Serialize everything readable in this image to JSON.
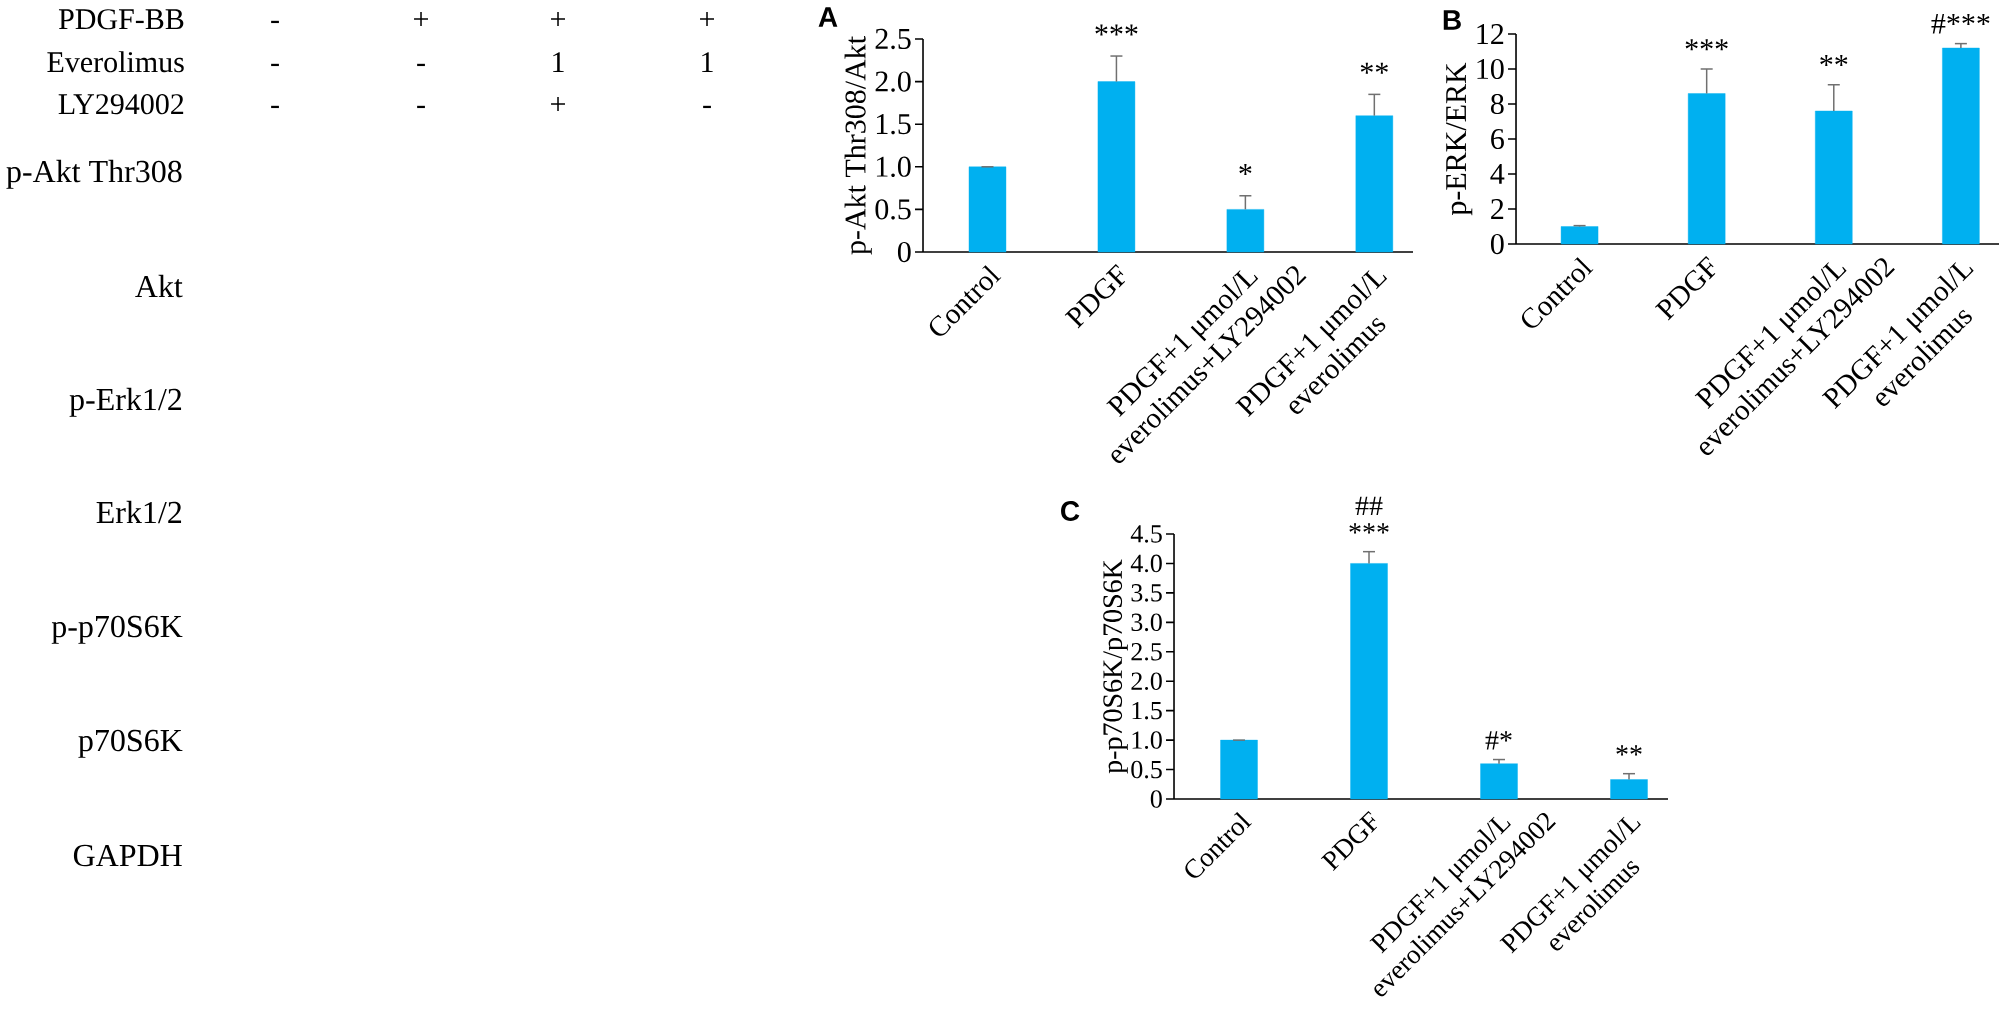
{
  "chart_data": [
    {
      "type": "other",
      "annotations": [
        "PDGF-BB",
        "-",
        "+",
        "+",
        "+",
        "Everolimus",
        "-",
        "-",
        "1",
        "1",
        "LY294002",
        "-",
        "-",
        "+",
        "-",
        "p-Akt Thr308",
        "Akt",
        "p-Erk1/2",
        "Erk1/2",
        "p-p70S6K",
        "p70S6K",
        "GAPDH"
      ]
    },
    {
      "type": "bar",
      "title": "A",
      "ylabel": "p-Akt Thr308/Akt",
      "categories": [
        "Control",
        "PDGF",
        "PDGF+1 μmol/L everolimus+LY294002",
        "PDGF+1 μmol/L everolimus"
      ],
      "values": [
        1,
        2.0,
        0.5,
        1.6
      ],
      "errors": [
        [
          1,
          1
        ],
        [
          2.0,
          2.3
        ],
        [
          0.5,
          0.66
        ],
        [
          1.6,
          1.85
        ]
      ],
      "color": "#00b0f0",
      "ylim": [
        0,
        2.5
      ],
      "yticks": [
        0,
        0.5,
        {
          "value": 1,
          "label": "1.0"
        },
        1.5,
        {
          "value": 2,
          "label": "2.0"
        },
        2.5
      ],
      "annotations": [
        "***",
        "*",
        "**"
      ]
    },
    {
      "type": "bar",
      "title": "B",
      "ylabel": "p-ERK/ERK",
      "categories": [
        "Control",
        "PDGF",
        "PDGF+1 μmol/L everolimus+LY294002",
        "PDGF+1 μmol/L everolimus"
      ],
      "values": [
        1,
        8.6,
        7.6,
        11.2
      ],
      "errors": [
        [
          1,
          1.05
        ],
        [
          8.6,
          10.0
        ],
        [
          7.6,
          9.1
        ],
        [
          11.2,
          11.45
        ]
      ],
      "color": "#00b0f0",
      "ylim": [
        0,
        12
      ],
      "yticks": [
        0,
        2,
        4,
        6,
        8,
        10,
        12
      ],
      "annotations": [
        "***",
        "**",
        "#***"
      ]
    },
    {
      "type": "bar",
      "title": "C",
      "ylabel": "p-p70S6K/p70S6K",
      "categories": [
        "Control",
        "PDGF",
        "PDGF+1 μmol/L everolimus+LY294002",
        "PDGF+1 μmol/L everolimus"
      ],
      "values": [
        1,
        4.0,
        0.6,
        0.33
      ],
      "errors": [
        [
          1,
          1
        ],
        [
          4.0,
          4.2
        ],
        [
          0.6,
          0.67
        ],
        [
          0.33,
          0.43
        ]
      ],
      "color": "#00b0f0",
      "ylim": [
        0,
        4.5
      ],
      "yticks": [
        0,
        0.5,
        {
          "value": 1,
          "label": "1.0"
        },
        1.5,
        {
          "value": 2,
          "label": "2.0"
        },
        2.5,
        {
          "value": 3,
          "label": "3.0"
        },
        3.5,
        {
          "value": 4,
          "label": "4.0"
        },
        4.5
      ],
      "annotations": [
        "##",
        "***",
        "#*",
        "**"
      ]
    }
  ]
}
